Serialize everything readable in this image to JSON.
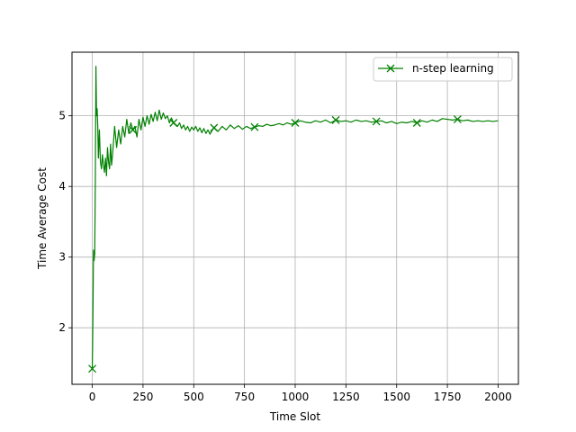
{
  "chart_data": {
    "type": "line",
    "xlabel": "Time Slot",
    "ylabel": "Time Average Cost",
    "xlim": [
      -100,
      2100
    ],
    "ylim": [
      1.2,
      5.9
    ],
    "xticks": [
      0,
      250,
      500,
      750,
      1000,
      1250,
      1500,
      1750,
      2000
    ],
    "yticks": [
      2,
      3,
      4,
      5
    ],
    "grid": true,
    "legend_position": "top-right",
    "series": [
      {
        "name": "n-step learning",
        "color": "#008000",
        "marker": "x",
        "marker_x": [
          0,
          200,
          400,
          600,
          800,
          1000,
          1200,
          1400,
          1600,
          1800
        ],
        "x": [
          0,
          3,
          6,
          9,
          12,
          15,
          18,
          21,
          24,
          27,
          30,
          35,
          40,
          45,
          50,
          55,
          60,
          65,
          70,
          75,
          80,
          85,
          90,
          95,
          100,
          110,
          120,
          130,
          140,
          150,
          160,
          170,
          180,
          190,
          200,
          210,
          220,
          230,
          240,
          250,
          260,
          270,
          280,
          290,
          300,
          310,
          320,
          330,
          340,
          350,
          360,
          370,
          380,
          390,
          400,
          410,
          420,
          430,
          440,
          450,
          460,
          470,
          480,
          490,
          500,
          510,
          520,
          530,
          540,
          550,
          560,
          570,
          580,
          590,
          600,
          620,
          640,
          660,
          680,
          700,
          720,
          740,
          760,
          780,
          800,
          820,
          840,
          860,
          880,
          900,
          920,
          940,
          960,
          980,
          1000,
          1025,
          1050,
          1075,
          1100,
          1125,
          1150,
          1175,
          1200,
          1225,
          1250,
          1275,
          1300,
          1325,
          1350,
          1375,
          1400,
          1425,
          1450,
          1475,
          1500,
          1525,
          1550,
          1575,
          1600,
          1625,
          1650,
          1675,
          1700,
          1725,
          1750,
          1775,
          1800,
          1825,
          1850,
          1875,
          1900,
          1925,
          1950,
          1975,
          2000
        ],
        "values": [
          1.42,
          2.1,
          3.1,
          2.95,
          3.05,
          4.1,
          5.7,
          5.0,
          5.1,
          4.85,
          4.4,
          4.8,
          4.35,
          4.25,
          4.45,
          4.3,
          4.2,
          4.4,
          4.15,
          4.55,
          4.35,
          4.25,
          4.6,
          4.3,
          4.45,
          4.85,
          4.55,
          4.8,
          4.6,
          4.85,
          4.7,
          4.95,
          4.75,
          4.9,
          4.8,
          4.85,
          4.7,
          4.95,
          4.8,
          4.98,
          4.85,
          5.0,
          4.88,
          5.02,
          4.92,
          5.05,
          4.93,
          5.08,
          4.95,
          5.04,
          4.96,
          5.0,
          4.9,
          4.97,
          4.9,
          4.88,
          4.85,
          4.9,
          4.82,
          4.87,
          4.8,
          4.85,
          4.78,
          4.84,
          4.8,
          4.85,
          4.78,
          4.83,
          4.76,
          4.82,
          4.75,
          4.8,
          4.74,
          4.79,
          4.83,
          4.78,
          4.85,
          4.8,
          4.87,
          4.82,
          4.86,
          4.81,
          4.85,
          4.82,
          4.84,
          4.86,
          4.85,
          4.88,
          4.86,
          4.87,
          4.89,
          4.87,
          4.9,
          4.88,
          4.9,
          4.93,
          4.91,
          4.9,
          4.93,
          4.91,
          4.94,
          4.9,
          4.94,
          4.92,
          4.93,
          4.91,
          4.94,
          4.92,
          4.93,
          4.91,
          4.92,
          4.93,
          4.9,
          4.92,
          4.89,
          4.91,
          4.9,
          4.92,
          4.9,
          4.93,
          4.91,
          4.94,
          4.92,
          4.96,
          4.95,
          4.94,
          4.95,
          4.93,
          4.94,
          4.92,
          4.93,
          4.92,
          4.93,
          4.92,
          4.93
        ]
      }
    ]
  }
}
